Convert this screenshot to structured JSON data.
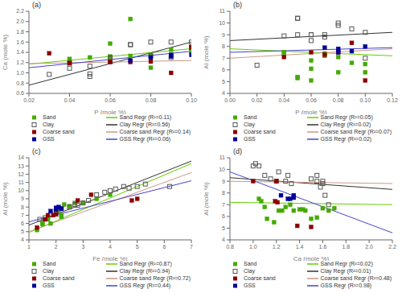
{
  "chart_data": [
    {
      "type": "scatter",
      "title": "(a)",
      "xlabel": "P (mole %)",
      "ylabel": "Ca (mole %)",
      "xlim": [
        0.02,
        0.1
      ],
      "ylim": [
        0.6,
        2.2
      ],
      "xticks": [
        0.02,
        0.04,
        0.06,
        0.08,
        {
          "value": 0.1,
          "label": "0.10"
        }
      ],
      "yticks": [
        0.6,
        0.8,
        {
          "value": 1.0,
          "label": "1.0"
        },
        1.2,
        1.4,
        1.6,
        1.8,
        {
          "value": 2.0,
          "label": "2.0"
        },
        2.2
      ],
      "grid": false,
      "legend": "bottom",
      "series": [
        {
          "name": "Sand",
          "type": "scatter",
          "marker": "square",
          "color": "#44aa00",
          "x": [
            0.04,
            0.04,
            0.05,
            0.06,
            0.06,
            0.06,
            0.07,
            0.07,
            0.08,
            0.08,
            0.09,
            0.09,
            0.1,
            0.1
          ],
          "y": [
            1.25,
            1.27,
            1.3,
            1.27,
            1.32,
            1.57,
            1.33,
            2.05,
            1.35,
            1.1,
            1.45,
            1.35,
            1.45,
            1.42
          ]
        },
        {
          "name": "Sand Regr (R²=0.11)",
          "type": "line",
          "color": "#66cc00",
          "x": [
            0.02,
            0.1
          ],
          "y": [
            1.17,
            1.47
          ]
        },
        {
          "name": "Clay",
          "type": "scatter",
          "marker": "hollow_square",
          "color": "#555555",
          "x": [
            0.03,
            0.04,
            0.04,
            0.05,
            0.05,
            0.05,
            0.06,
            0.06,
            0.06,
            0.07,
            0.07,
            0.08,
            0.08,
            0.09,
            0.09,
            0.1,
            0.1
          ],
          "y": [
            0.97,
            1.19,
            1.09,
            1.13,
            0.93,
            0.98,
            1.28,
            1.22,
            1.3,
            1.55,
            1.55,
            1.6,
            1.33,
            1.3,
            1.6,
            1.5,
            1.6
          ]
        },
        {
          "name": "Clay Regr (R²=0.56)",
          "type": "line",
          "color": "#333333",
          "x": [
            0.02,
            0.1
          ],
          "y": [
            0.76,
            1.6
          ]
        },
        {
          "name": "Coarse sand",
          "type": "scatter",
          "marker": "square",
          "color": "#8B0000",
          "x": [
            0.03,
            0.04,
            0.06,
            0.07,
            0.08,
            0.09,
            0.1
          ],
          "y": [
            1.38,
            1.19,
            1.21,
            1.21,
            1.22,
            1.0,
            1.5
          ]
        },
        {
          "name": "Coarse sand Regr (R²=0.14)",
          "type": "line",
          "color": "#cc9988",
          "x": [
            0.02,
            0.1
          ],
          "y": [
            1.18,
            1.24
          ]
        },
        {
          "name": "GSS",
          "type": "scatter",
          "marker": "square",
          "color": "#000099",
          "x": [
            0.07,
            0.08,
            0.09,
            0.09,
            0.1
          ],
          "y": [
            1.24,
            1.3,
            1.35,
            1.32,
            1.35
          ]
        },
        {
          "name": "GSS Regr (R²=0.06)",
          "type": "line",
          "color": "#4444cc",
          "x": [
            0.02,
            0.1
          ],
          "y": [
            1.1,
            1.42
          ]
        }
      ]
    },
    {
      "type": "scatter",
      "title": "(b)",
      "xlabel": "P (mole %)",
      "ylabel": "Al (mole %)",
      "xlim": [
        0.0,
        0.12
      ],
      "ylim": [
        4,
        11
      ],
      "xticks": [
        {
          "value": 0.0,
          "label": "0.00"
        },
        0.02,
        0.04,
        0.06,
        0.08,
        {
          "value": 0.1,
          "label": "0.10"
        },
        0.12
      ],
      "yticks": [
        4,
        5,
        6,
        7,
        8,
        9,
        10,
        11
      ],
      "grid": false,
      "legend": "bottom",
      "series": [
        {
          "name": "Sand",
          "type": "scatter",
          "marker": "square",
          "color": "#44aa00",
          "x": [
            0.04,
            0.04,
            0.05,
            0.05,
            0.06,
            0.06,
            0.06,
            0.07,
            0.07,
            0.08,
            0.08,
            0.09,
            0.1,
            0.1
          ],
          "y": [
            7.5,
            7.5,
            5.3,
            5.4,
            6.1,
            5.1,
            6.8,
            7.2,
            7.4,
            5.8,
            7.1,
            6.6,
            6.5,
            5.8
          ]
        },
        {
          "name": "Sand Regr (R²=0.05)",
          "type": "line",
          "color": "#66cc00",
          "x": [
            0.0,
            0.12
          ],
          "y": [
            7.8,
            7.2
          ]
        },
        {
          "name": "Clay",
          "type": "scatter",
          "marker": "hollow_square",
          "color": "#555555",
          "x": [
            0.02,
            0.04,
            0.05,
            0.05,
            0.05,
            0.06,
            0.06,
            0.06,
            0.07,
            0.07,
            0.08,
            0.08,
            0.09,
            0.1,
            0.1
          ],
          "y": [
            6.4,
            8.9,
            10.4,
            10.4,
            9.0,
            8.5,
            9.0,
            9.0,
            9.0,
            8.8,
            10.0,
            9.8,
            9.5,
            9.2,
            7.0
          ]
        },
        {
          "name": "Clay Regr (R²=0.02)",
          "type": "line",
          "color": "#333333",
          "x": [
            0.0,
            0.12
          ],
          "y": [
            8.5,
            9.2
          ]
        },
        {
          "name": "Coarse sand",
          "type": "scatter",
          "marker": "square",
          "color": "#8B0000",
          "x": [
            0.04,
            0.06,
            0.07,
            0.08,
            0.09,
            0.1
          ],
          "y": [
            7.1,
            7.5,
            7.3,
            7.5,
            8.3,
            5.1
          ]
        },
        {
          "name": "Coarse sand Regr (R²=0.07)",
          "type": "line",
          "color": "#cc9988",
          "x": [
            0.0,
            0.12
          ],
          "y": [
            7.0,
            7.8
          ]
        },
        {
          "name": "GSS",
          "type": "scatter",
          "marker": "square",
          "color": "#000099",
          "x": [
            0.07,
            0.08,
            0.08,
            0.09,
            0.1
          ],
          "y": [
            7.9,
            7.5,
            7.8,
            7.6,
            8.0
          ]
        },
        {
          "name": "GSS Regr (R²=0.02)",
          "type": "line",
          "color": "#4444cc",
          "x": [
            0.0,
            0.12
          ],
          "y": [
            7.5,
            7.9
          ]
        }
      ]
    },
    {
      "type": "scatter",
      "title": "(c)",
      "xlabel": "Fe (mole %)",
      "ylabel": "Al (mole %)",
      "xlim": [
        1,
        7
      ],
      "ylim": [
        4,
        14
      ],
      "xticks": [
        1,
        2,
        3,
        4,
        5,
        6,
        7
      ],
      "yticks": [
        4,
        5,
        6,
        7,
        8,
        9,
        10,
        11,
        12,
        13,
        14
      ],
      "grid": false,
      "legend": "bottom",
      "series": [
        {
          "name": "Sand",
          "type": "scatter",
          "marker": "square",
          "color": "#44aa00",
          "x": [
            1.3,
            1.5,
            1.5,
            1.6,
            1.7,
            1.7,
            1.8,
            2.0,
            2.0,
            2.1,
            2.2,
            2.2,
            2.3,
            2.5,
            2.7,
            3.0,
            3.5,
            4.0
          ],
          "y": [
            5.2,
            6.0,
            5.9,
            6.5,
            6.7,
            6.5,
            6.0,
            7.5,
            7.5,
            7.6,
            7.0,
            6.8,
            8.3,
            8.1,
            8.5,
            8.5,
            9.0,
            9.5
          ]
        },
        {
          "name": "Sand Regr (R²=0.87)",
          "type": "line",
          "color": "#66cc00",
          "x": [
            1,
            7
          ],
          "y": [
            4.9,
            13.3
          ]
        },
        {
          "name": "Clay",
          "type": "scatter",
          "marker": "hollow_square",
          "color": "#555555",
          "x": [
            1.4,
            1.6,
            1.8,
            2.0,
            2.2,
            2.5,
            2.7,
            2.8,
            3.0,
            3.2,
            3.5,
            3.8,
            4.0,
            4.2,
            4.5,
            4.7,
            5.0,
            5.3,
            6.2
          ],
          "y": [
            6.5,
            6.7,
            7.1,
            7.5,
            7.8,
            8.0,
            8.3,
            8.2,
            8.5,
            8.8,
            9.5,
            9.8,
            10.0,
            10.2,
            10.5,
            10.3,
            10.5,
            10.8,
            10.5
          ]
        },
        {
          "name": "Clay Regr (R²=0.94)",
          "type": "line",
          "color": "#333333",
          "x": [
            1,
            7
          ],
          "y": [
            5.8,
            13.6
          ]
        },
        {
          "name": "Coarse sand",
          "type": "scatter",
          "marker": "square",
          "color": "#8B0000",
          "x": [
            1.3,
            1.6,
            1.7,
            1.9,
            2.0,
            2.8,
            3.3,
            4.8,
            5.0
          ],
          "y": [
            5.5,
            6.5,
            7.0,
            7.0,
            7.1,
            8.8,
            9.5,
            8.8,
            9.0
          ]
        },
        {
          "name": "Coarse sand Regr (R²=0.72)",
          "type": "line",
          "color": "#cc9988",
          "x": [
            1,
            7
          ],
          "y": [
            5.0,
            12.2
          ]
        },
        {
          "name": "GSS",
          "type": "scatter",
          "marker": "square",
          "color": "#000099",
          "x": [
            1.8,
            2.0,
            2.0,
            2.1,
            2.2
          ],
          "y": [
            7.5,
            7.7,
            7.9,
            8.0,
            7.8
          ]
        },
        {
          "name": "GSS Regr (R²=0.44)",
          "type": "line",
          "color": "#4444cc",
          "x": [
            1,
            7
          ],
          "y": [
            6.2,
            11.2
          ]
        }
      ]
    },
    {
      "type": "scatter",
      "title": "(d)",
      "xlabel": "Ca (mole %)",
      "ylabel": "Al (mole %)",
      "xlim": [
        0.8,
        2.2
      ],
      "ylim": [
        4,
        11
      ],
      "xticks": [
        0.8,
        {
          "value": 1.0,
          "label": "1.0"
        },
        1.2,
        1.4,
        1.6,
        1.8,
        {
          "value": 2.0,
          "label": "2.0"
        },
        2.2
      ],
      "yticks": [
        4,
        5,
        6,
        7,
        8,
        9,
        10,
        11
      ],
      "grid": false,
      "legend": "bottom",
      "series": [
        {
          "name": "Sand",
          "type": "scatter",
          "marker": "square",
          "color": "#44aa00",
          "x": [
            1.05,
            1.07,
            1.1,
            1.12,
            1.18,
            1.22,
            1.25,
            1.28,
            1.32,
            1.35,
            1.4,
            1.43,
            1.45,
            1.5,
            1.55,
            1.6,
            1.65,
            1.7
          ],
          "y": [
            7.5,
            7.3,
            6.8,
            5.8,
            5.5,
            6.5,
            6.5,
            6.8,
            7.0,
            6.5,
            6.6,
            6.6,
            6.5,
            5.8,
            5.9,
            6.7,
            6.5,
            6.7
          ]
        },
        {
          "name": "Sand Regr (R²=0.02)",
          "type": "line",
          "color": "#66cc00",
          "x": [
            0.8,
            2.2
          ],
          "y": [
            7.2,
            7.0
          ]
        },
        {
          "name": "Clay",
          "type": "scatter",
          "marker": "hollow_square",
          "color": "#555555",
          "x": [
            1.0,
            1.02,
            1.05,
            1.1,
            1.15,
            1.2,
            1.22,
            1.28,
            1.3,
            1.33,
            1.5,
            1.55,
            1.55,
            1.58,
            1.6,
            1.6,
            1.62,
            1.65
          ],
          "y": [
            10.3,
            10.5,
            10.3,
            9.5,
            9.2,
            9.0,
            9.8,
            9.0,
            9.5,
            8.8,
            9.2,
            9.5,
            9.0,
            8.5,
            9.0,
            8.8,
            7.8,
            7.0
          ]
        },
        {
          "name": "Clay Regr (R²=0.01)",
          "type": "line",
          "color": "#333333",
          "x": [
            0.8,
            2.2
          ],
          "y": [
            9.3,
            8.3
          ]
        },
        {
          "name": "Coarse sand",
          "type": "scatter",
          "marker": "square",
          "color": "#8B0000",
          "x": [
            1.0,
            1.19,
            1.2,
            1.21,
            1.38,
            1.5
          ],
          "y": [
            9.0,
            7.3,
            9.0,
            7.2,
            5.2,
            5.1
          ]
        },
        {
          "name": "Coarse sand Regr (R²=0.48)",
          "type": "line",
          "color": "#cc9988",
          "x": [
            0.8,
            2.2
          ],
          "y": [
            9.0,
            8.8
          ]
        },
        {
          "name": "GSS",
          "type": "scatter",
          "marker": "square",
          "color": "#000099",
          "x": [
            1.24,
            1.3,
            1.32,
            1.35,
            1.35
          ],
          "y": [
            7.8,
            7.5,
            7.5,
            7.8,
            7.6
          ]
        },
        {
          "name": "GSS Regr (R²=0.98)",
          "type": "line",
          "color": "#4444cc",
          "x": [
            0.8,
            2.2
          ],
          "y": [
            9.8,
            4.6
          ]
        }
      ]
    }
  ]
}
